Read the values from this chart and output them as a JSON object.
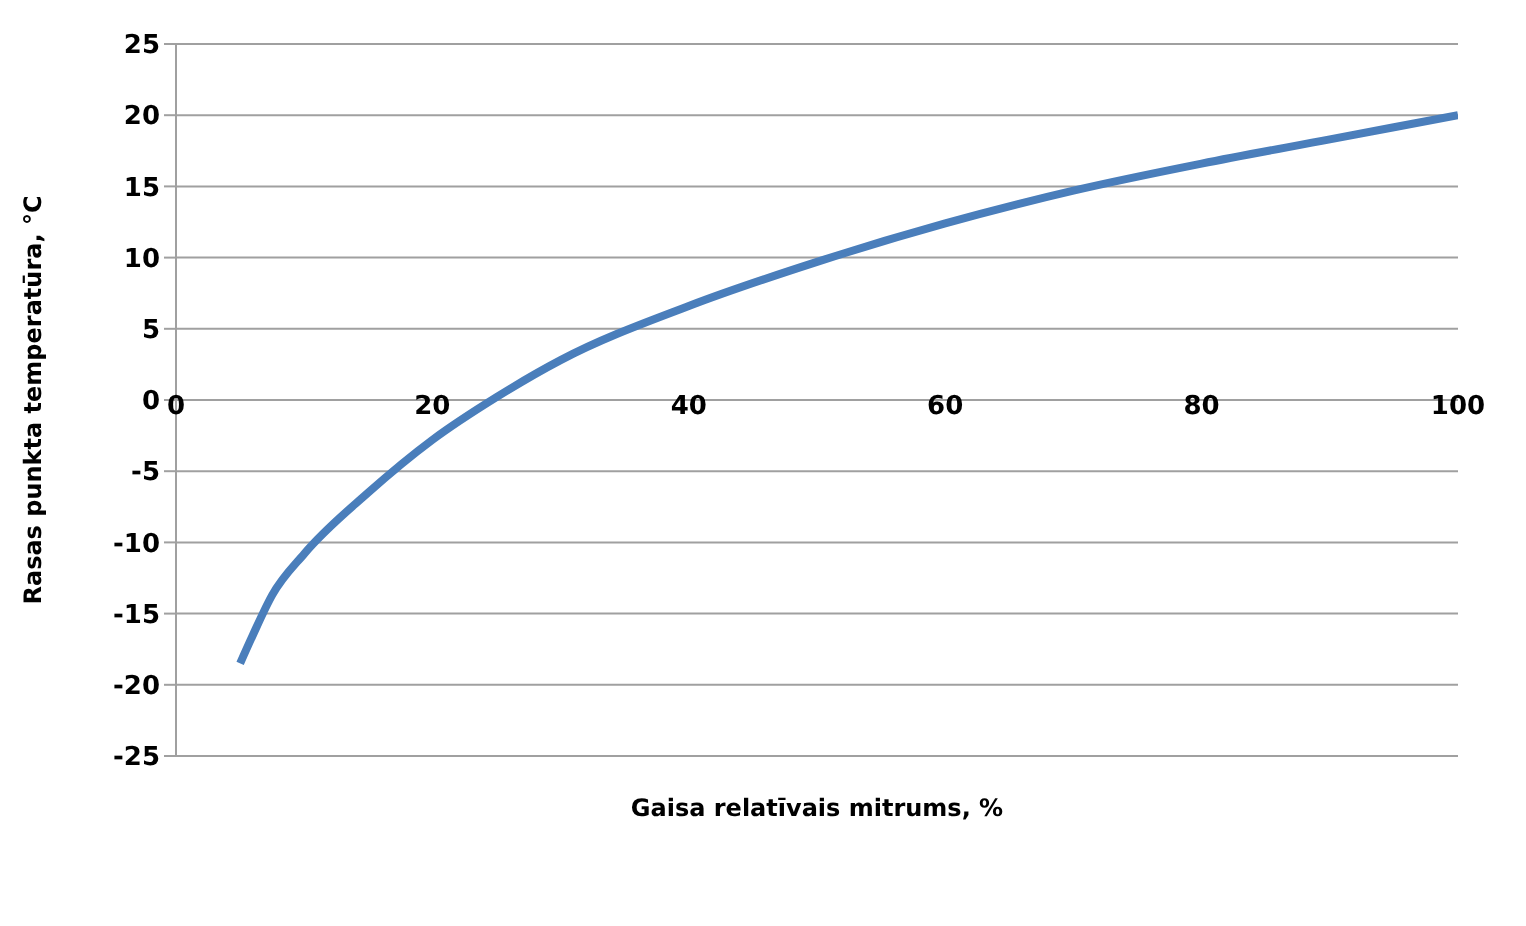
{
  "chart_data": {
    "type": "line",
    "xlabel": "Gaisa relatīvais mitrums, %",
    "ylabel": "Rasas punkta temperatūra, °C",
    "x": [
      5,
      6,
      7.5,
      10,
      15,
      20,
      25,
      30,
      40,
      50,
      60,
      70,
      80,
      90,
      100
    ],
    "series": [
      {
        "color": "#4a7ebb",
        "values": [
          -18.5,
          -16.5,
          -13.7,
          -10.8,
          -6.5,
          -2.8,
          0.2,
          2.8,
          6.6,
          9.7,
          12.4,
          14.7,
          16.6,
          18.3,
          20
        ]
      }
    ],
    "xlim": [
      0,
      100
    ],
    "xticks": [
      0,
      20,
      40,
      60,
      80,
      100
    ],
    "ylim": [
      -25,
      25
    ],
    "yticks": [
      -25,
      -20,
      -15,
      -10,
      -5,
      0,
      5,
      10,
      15,
      20,
      25
    ],
    "grid": "y",
    "legend": false,
    "marker": "none",
    "line_style": "solid"
  }
}
